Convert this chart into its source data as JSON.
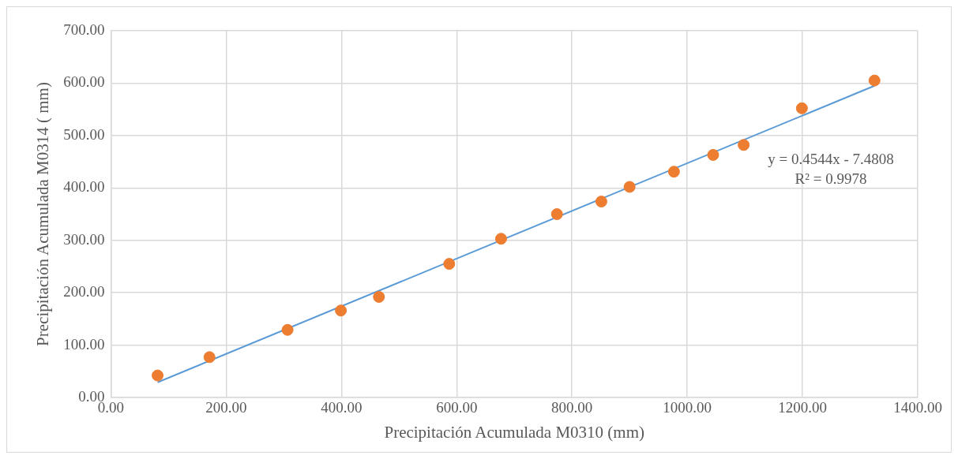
{
  "chart_data": {
    "type": "scatter",
    "xlabel": "Precipitación Acumulada M0310 (mm)",
    "ylabel": "Precipitación Acumulada M0314 ( mm)",
    "x": [
      81,
      171,
      306.5,
      399,
      465,
      587,
      677,
      774,
      851,
      900,
      977,
      1045,
      1098,
      1199,
      1325
    ],
    "series": [
      {
        "color": "#ed7d31",
        "marker": "circle",
        "values": [
          42,
          77,
          129,
          166,
          192,
          255,
          303,
          350,
          374,
          402,
          431,
          463,
          482,
          552,
          605
        ]
      },
      {
        "type": "line",
        "color": "#5b9bd5",
        "x": [
          81,
          1325
        ],
        "values": [
          29,
          595
        ],
        "marker": "none",
        "line_style": "solid"
      }
    ],
    "xlim": [
      0,
      1400
    ],
    "xticks": [
      {
        "value": 0,
        "label": "0.00"
      },
      {
        "value": 200,
        "label": "200.00"
      },
      {
        "value": 400,
        "label": "400.00"
      },
      {
        "value": 600,
        "label": "600.00"
      },
      {
        "value": 800,
        "label": "800.00"
      },
      {
        "value": 1000,
        "label": "1000.00"
      },
      {
        "value": 1200,
        "label": "1200.00"
      },
      {
        "value": 1400,
        "label": "1400.00"
      }
    ],
    "ylim": [
      0,
      700
    ],
    "yticks": [
      {
        "value": 0,
        "label": "0.00"
      },
      {
        "value": 100,
        "label": "100.00"
      },
      {
        "value": 200,
        "label": "200.00"
      },
      {
        "value": 300,
        "label": "300.00"
      },
      {
        "value": 400,
        "label": "400.00"
      },
      {
        "value": 500,
        "label": "500.00"
      },
      {
        "value": 600,
        "label": "600.00"
      },
      {
        "value": 700,
        "label": "700.00"
      }
    ],
    "grid": true,
    "legend": false,
    "annotations": [
      "y = 0.4544x - 7.4808",
      "R² = 0.9978"
    ]
  }
}
